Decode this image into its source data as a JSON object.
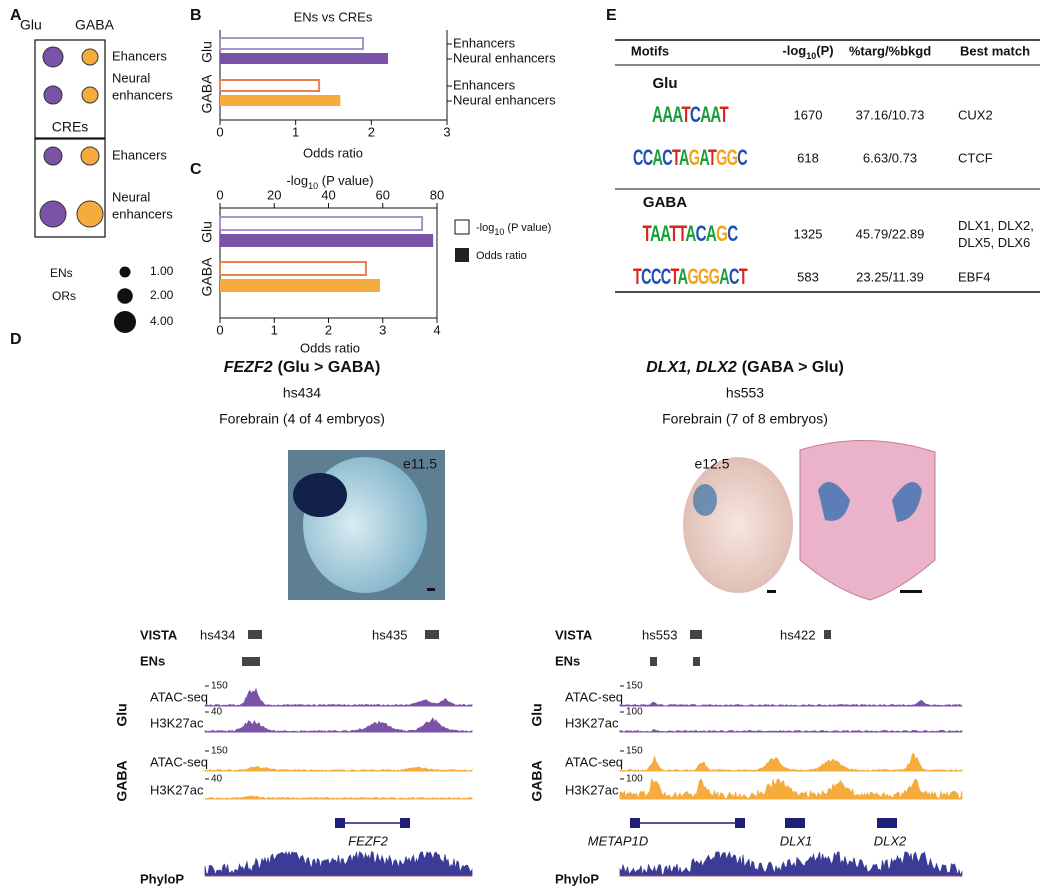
{
  "panel_a": {
    "label": "A",
    "groups": [
      "Glu",
      "GABA"
    ],
    "enhancers": "Ehancers",
    "neural": [
      "Neural",
      "enhancers"
    ],
    "cres": "CREs",
    "ens": "ENs",
    "ors": "ORs",
    "size_legend": [
      {
        "value": 1,
        "label": "1.00"
      },
      {
        "value": 2,
        "label": "2.00"
      },
      {
        "value": 4,
        "label": "4.00"
      }
    ]
  },
  "panel_b": {
    "label": "B",
    "type": "bar",
    "title": "ENs vs CREs",
    "xlabel": "Odds ratio",
    "xlim": [
      0,
      3
    ],
    "xticks": [
      0,
      1,
      2,
      3
    ],
    "series": [
      {
        "name": "Glu",
        "categories": [
          "Enhancers",
          "Neural enhancers"
        ],
        "values": [
          1.89,
          2.22
        ]
      },
      {
        "name": "GABA",
        "categories": [
          "Enhancers",
          "Neural enhancers"
        ],
        "values": [
          1.31,
          1.59
        ]
      }
    ]
  },
  "panel_c": {
    "label": "C",
    "type": "bar",
    "xlabel": "Odds ratio",
    "xlim": [
      0,
      4
    ],
    "xticks": [
      0,
      1,
      2,
      3,
      4
    ],
    "top_label": {
      "prefix": "-log",
      "sub": "10",
      "suffix": " (P value)"
    },
    "toplim": [
      0,
      80
    ],
    "topticks": [
      0,
      20,
      40,
      60,
      80
    ],
    "groups": [
      "Glu",
      "GABA"
    ],
    "pvalues": [
      74.5,
      53.8
    ],
    "odds_ratios": [
      3.93,
      2.95
    ],
    "legend": [
      {
        "prefix": "-log",
        "sub": "10",
        "suffix": " (P value)"
      },
      "Odds ratio"
    ]
  },
  "panel_d": {
    "label": "D",
    "rows": {
      "vista": "VISTA",
      "ens": "ENs",
      "phylop": "PhyloP"
    },
    "left": {
      "gene": "FEZF2",
      "comparison": "(Glu > GABA)",
      "element": "hs434",
      "expression": "Forebrain (4 of 4 embryos)",
      "stage": "e11.5",
      "vista": [
        "hs434",
        "hs435"
      ],
      "tracks": [
        {
          "group": "Glu",
          "rows": [
            {
              "label": "ATAC-seq",
              "scale": 150
            },
            {
              "label": "H3K27ac",
              "scale": 40
            }
          ]
        },
        {
          "group": "GABA",
          "rows": [
            {
              "label": "ATAC-seq",
              "scale": 150
            },
            {
              "label": "H3K27ac",
              "scale": 40
            }
          ]
        }
      ],
      "genes": [
        "FEZF2"
      ]
    },
    "right": {
      "gene": "DLX1, DLX2",
      "comparison": "(GABA > Glu)",
      "element": "hs553",
      "expression": "Forebrain (7 of 8 embryos)",
      "stage": "e12.5",
      "vista": [
        "hs553",
        "hs422"
      ],
      "tracks": [
        {
          "group": "Glu",
          "rows": [
            {
              "label": "ATAC-seq",
              "scale": 150
            },
            {
              "label": "H3K27ac",
              "scale": 100
            }
          ]
        },
        {
          "group": "GABA",
          "rows": [
            {
              "label": "ATAC-seq",
              "scale": 150
            },
            {
              "label": "H3K27ac",
              "scale": 100
            }
          ]
        }
      ],
      "genes": [
        "METAP1D",
        "DLX1",
        "DLX2"
      ]
    }
  },
  "panel_e": {
    "label": "E",
    "header": [
      "Motifs",
      {
        "prefix": "-log",
        "sub": "10",
        "suffix": "(P)"
      },
      "%targ/%bkgd",
      "Best match"
    ],
    "sections": [
      {
        "name": "Glu",
        "rows": [
          {
            "motif": "AAATCAAT",
            "logp": 1670,
            "ratio": "37.16/10.73",
            "match": [
              "CUX2"
            ]
          },
          {
            "motif": "CCACTAGATGGC",
            "logp": 618,
            "ratio": "6.63/0.73",
            "match": [
              "CTCF"
            ]
          }
        ]
      },
      {
        "name": "GABA",
        "rows": [
          {
            "motif": "TAATTACAGC",
            "logp": 1325,
            "ratio": "45.79/22.89",
            "match": [
              "DLX1, DLX2,",
              "DLX5, DLX6"
            ]
          },
          {
            "motif": "TCCCTAGGGACT",
            "logp": 583,
            "ratio": "23.25/11.39",
            "match": [
              "EBF4"
            ]
          }
        ]
      }
    ]
  }
}
